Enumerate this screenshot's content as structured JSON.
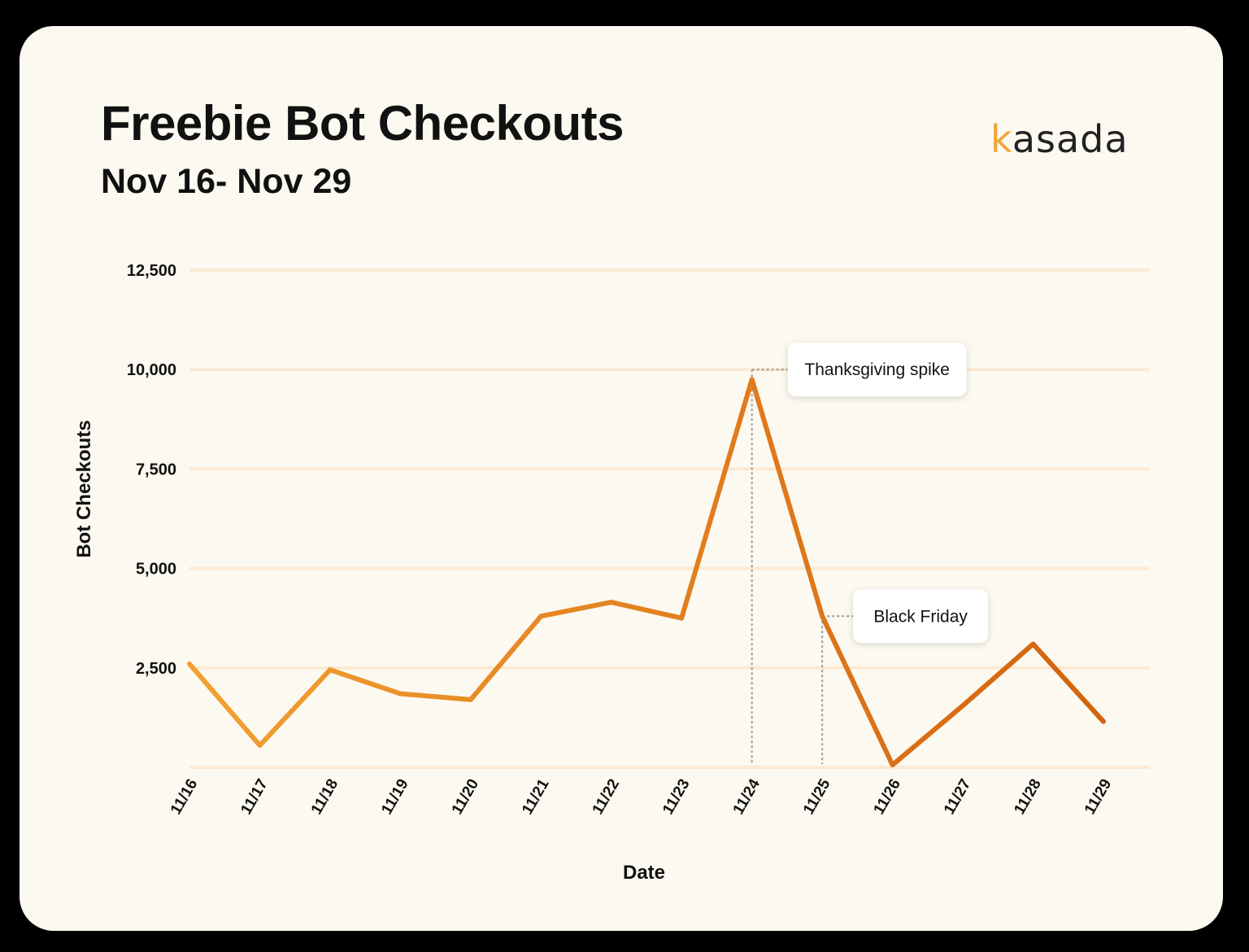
{
  "header": {
    "title": "Freebie Bot Checkouts",
    "subtitle": "Nov 16- Nov 29",
    "logo_k": "k",
    "logo_rest": "asada"
  },
  "colors": {
    "background": "#fcf9f0",
    "gridline": "#fde9d2",
    "line_start": "#f2a032",
    "line_end": "#d4620e",
    "logo_accent": "#f0a535",
    "text": "#111111"
  },
  "chart_data": {
    "type": "line",
    "title": "Freebie Bot Checkouts",
    "subtitle": "Nov 16- Nov 29",
    "xlabel": "Date",
    "ylabel": "Bot Checkouts",
    "ylim": [
      0,
      12500
    ],
    "yticks": [
      2500,
      5000,
      7500,
      10000,
      12500
    ],
    "ytick_labels": [
      "2,500",
      "5,000",
      "7,500",
      "10,000",
      "12,500"
    ],
    "grid": true,
    "legend": "none",
    "categories": [
      "11/16",
      "11/17",
      "11/18",
      "11/19",
      "11/20",
      "11/21",
      "11/22",
      "11/23",
      "11/24",
      "11/25",
      "11/26",
      "11/27",
      "11/28",
      "11/29"
    ],
    "series": [
      {
        "values": [
          2600,
          550,
          2450,
          1850,
          1700,
          3800,
          4150,
          3750,
          9750,
          3800,
          60,
          1550,
          3100,
          1150
        ]
      }
    ],
    "annotations": [
      {
        "text": "Thanksgiving spike",
        "category": "11/24",
        "value": 10000
      },
      {
        "text": "Black Friday",
        "category": "11/25",
        "value": 3800
      }
    ]
  }
}
